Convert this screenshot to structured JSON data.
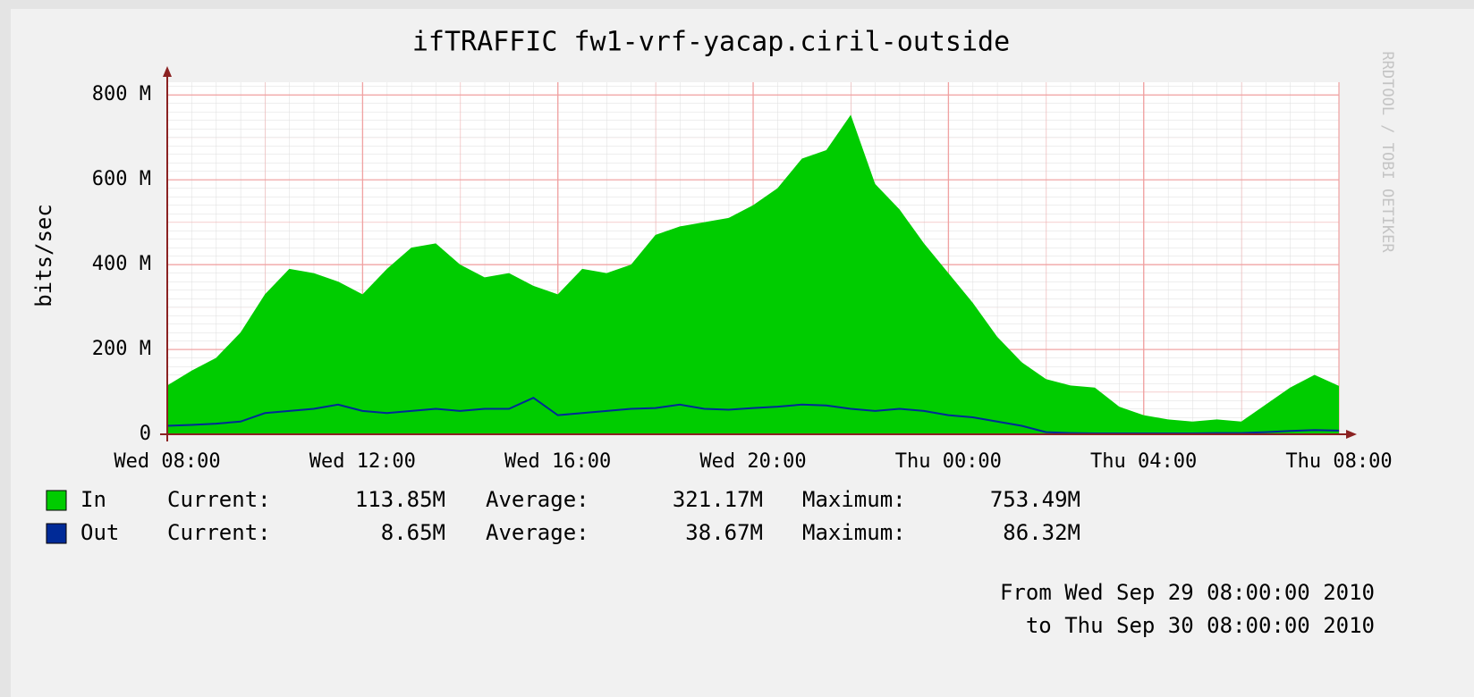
{
  "chart_data": {
    "type": "area",
    "title": "ifTRAFFIC fw1-vrf-yacap.ciril-outside",
    "ylabel": "bits/sec",
    "watermark": "RRDTOOL / TOBI OETIKER",
    "x": [
      0,
      0.5,
      1,
      1.5,
      2,
      2.5,
      3,
      3.5,
      4,
      4.5,
      5,
      5.5,
      6,
      6.5,
      7,
      7.5,
      8,
      8.5,
      9,
      9.5,
      10,
      10.5,
      11,
      11.5,
      12,
      12.5,
      13,
      13.5,
      14,
      14.5,
      15,
      15.5,
      16,
      16.5,
      17,
      17.5,
      18,
      18.5,
      19,
      19.5,
      20,
      20.5,
      21,
      21.5,
      22,
      22.5,
      23,
      23.5,
      24
    ],
    "xlim": [
      0,
      24
    ],
    "xticks": [
      {
        "value": 0,
        "label": "Wed 08:00"
      },
      {
        "value": 4,
        "label": "Wed 12:00"
      },
      {
        "value": 8,
        "label": "Wed 16:00"
      },
      {
        "value": 12,
        "label": "Wed 20:00"
      },
      {
        "value": 16,
        "label": "Thu 00:00"
      },
      {
        "value": 20,
        "label": "Thu 04:00"
      },
      {
        "value": 24,
        "label": "Thu 08:00"
      }
    ],
    "ylim": [
      0,
      830
    ],
    "yticks": [
      0,
      {
        "value": 200,
        "label": "200 M"
      },
      {
        "value": 400,
        "label": "400 M"
      },
      {
        "value": 600,
        "label": "600 M"
      },
      {
        "value": 800,
        "label": "800 M"
      }
    ],
    "grid": true,
    "stat_labels": [
      "Current:",
      "Average:",
      "Maximum:"
    ],
    "series": [
      {
        "name": "In",
        "color": "#00cc00",
        "draw": "area",
        "values": [
          115,
          150,
          180,
          240,
          330,
          390,
          380,
          360,
          330,
          390,
          440,
          450,
          400,
          370,
          380,
          350,
          330,
          390,
          380,
          400,
          470,
          490,
          500,
          510,
          540,
          580,
          650,
          670,
          753,
          590,
          530,
          450,
          380,
          310,
          230,
          170,
          130,
          115,
          110,
          65,
          45,
          35,
          30,
          35,
          30,
          70,
          110,
          140,
          114
        ],
        "stats": [
          "113.85M",
          "321.17M",
          "753.49M"
        ]
      },
      {
        "name": "Out",
        "color": "#002a97",
        "draw": "line",
        "values": [
          20,
          22,
          25,
          30,
          50,
          55,
          60,
          70,
          55,
          50,
          55,
          60,
          55,
          60,
          60,
          86,
          45,
          50,
          55,
          60,
          62,
          70,
          60,
          58,
          62,
          65,
          70,
          68,
          60,
          55,
          60,
          55,
          45,
          40,
          30,
          20,
          5,
          3,
          2,
          2,
          2,
          2,
          2,
          3,
          3,
          5,
          8,
          10,
          8.65
        ],
        "stats": [
          "8.65M",
          "38.67M",
          "86.32M"
        ]
      }
    ],
    "footer": [
      "From Wed Sep 29 08:00:00 2010",
      "to Thu Sep 30 08:00:00 2010"
    ]
  }
}
